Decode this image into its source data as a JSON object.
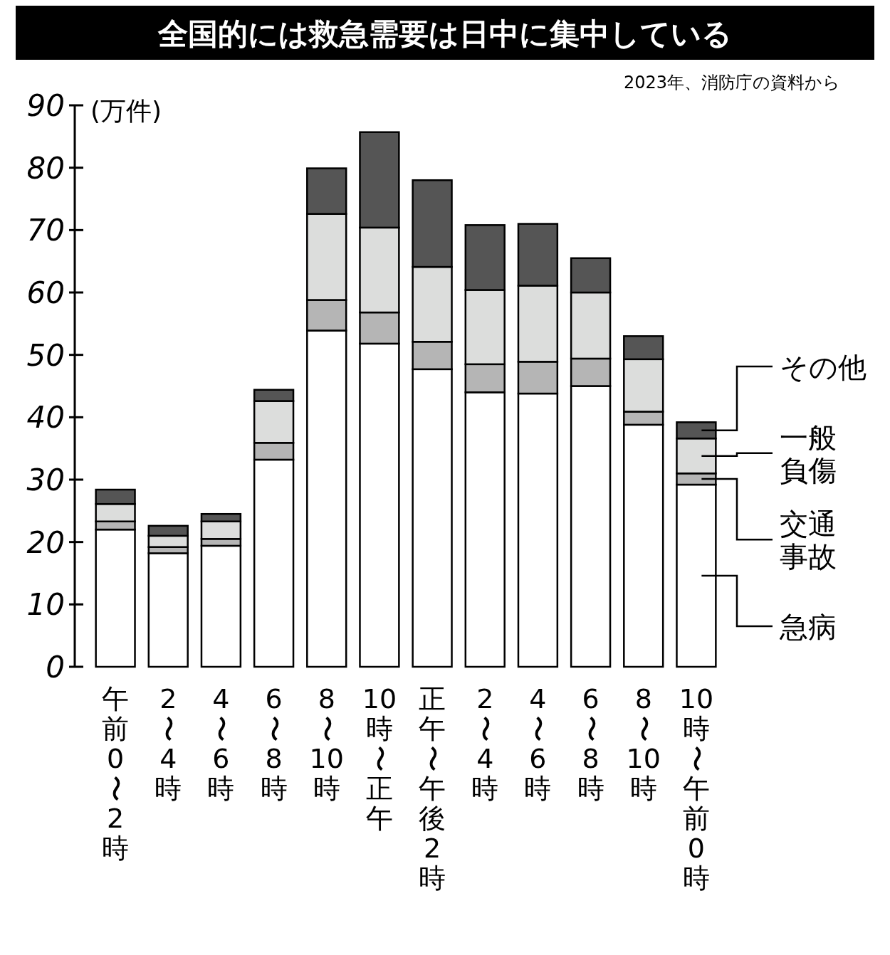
{
  "chart_data": {
    "type": "bar",
    "stacked": true,
    "title": "全国的には救急需要は日中に集中している",
    "annotations": [
      "2023年、消防庁の資料から"
    ],
    "ylabel": "(万件)",
    "ylim": [
      0,
      90
    ],
    "yticks": [
      0,
      10,
      20,
      30,
      40,
      50,
      60,
      70,
      80,
      90
    ],
    "legend": "right",
    "categories": [
      "午前0〜2時",
      "2〜4時",
      "4〜6時",
      "6〜8時",
      "8〜10時",
      "10時〜正午",
      "正午〜午後2時",
      "2〜4時",
      "4〜6時",
      "6〜8時",
      "8〜10時",
      "10時〜午前0時"
    ],
    "series": [
      {
        "name": "急病",
        "color": "#ffffff",
        "values": [
          22.0,
          18.2,
          19.4,
          33.2,
          53.9,
          51.8,
          47.7,
          44.0,
          43.8,
          45.0,
          38.8,
          29.2
        ]
      },
      {
        "name": "交通事故",
        "color": "#b5b5b5",
        "values": [
          1.3,
          1.0,
          1.1,
          2.7,
          4.9,
          5.0,
          4.4,
          4.5,
          5.1,
          4.4,
          2.1,
          1.8
        ]
      },
      {
        "name": "一般負傷",
        "color": "#dcdddc",
        "values": [
          2.8,
          1.8,
          2.8,
          6.7,
          13.8,
          13.6,
          12.0,
          11.9,
          12.2,
          10.6,
          8.4,
          5.6
        ]
      },
      {
        "name": "その他",
        "color": "#555555",
        "values": [
          2.3,
          1.6,
          1.2,
          1.8,
          7.3,
          15.3,
          13.9,
          10.4,
          9.9,
          5.5,
          3.7,
          2.6
        ]
      }
    ]
  }
}
